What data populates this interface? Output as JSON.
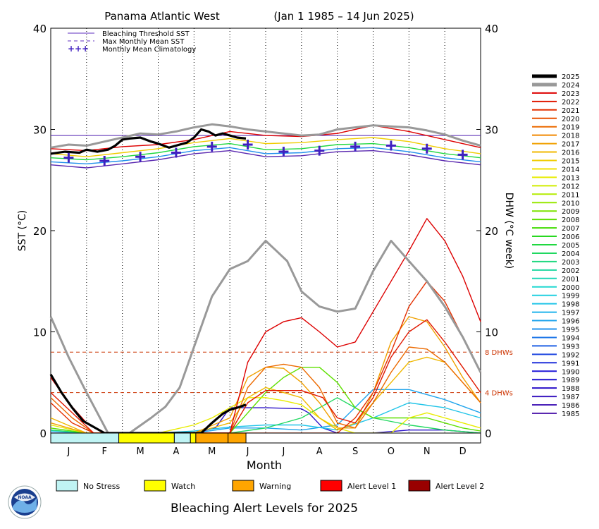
{
  "chart_data": {
    "type": "line",
    "title": "Panama Atlantic West",
    "period": "(Jan 1 1985 – 14 Jun 2025)",
    "xlabel": "Month",
    "ylabel_left": "SST (°C)",
    "ylabel_right": "DHW (°C week)",
    "ylim": [
      0,
      40
    ],
    "yticks": [
      0,
      10,
      20,
      30,
      40
    ],
    "months": [
      "J",
      "F",
      "M",
      "A",
      "M",
      "J",
      "J",
      "A",
      "S",
      "O",
      "N",
      "D"
    ],
    "bleaching_threshold": 29.4,
    "dhw_reference_lines": [
      {
        "value": 8,
        "label": "8 DHWs"
      },
      {
        "value": 4,
        "label": "4 DHWs"
      }
    ],
    "legend_top": [
      {
        "label": "Bleaching Threshold SST",
        "style": "solid",
        "color": "#6030c0"
      },
      {
        "label": "Max Monthly Mean SST",
        "style": "dashed",
        "color": "#6030c0"
      },
      {
        "label": "Monthly Mean Climatology",
        "style": "cross",
        "color": "#4020c0"
      }
    ],
    "climatology": [
      {
        "month": 0,
        "value": 27.2
      },
      {
        "month": 1,
        "value": 26.9
      },
      {
        "month": 2,
        "value": 27.3
      },
      {
        "month": 3,
        "value": 27.7
      },
      {
        "month": 4,
        "value": 28.3
      },
      {
        "month": 5,
        "value": 28.5
      },
      {
        "month": 6,
        "value": 27.8
      },
      {
        "month": 7,
        "value": 27.9
      },
      {
        "month": 8,
        "value": 28.3
      },
      {
        "month": 9,
        "value": 28.4
      },
      {
        "month": 10,
        "value": 28.1
      },
      {
        "month": 11,
        "value": 27.5
      }
    ],
    "years": [
      "2025",
      "2024",
      "2023",
      "2022",
      "2021",
      "2020",
      "2019",
      "2018",
      "2017",
      "2016",
      "2015",
      "2014",
      "2013",
      "2012",
      "2011",
      "2010",
      "2009",
      "2008",
      "2007",
      "2006",
      "2005",
      "2004",
      "2003",
      "2002",
      "2001",
      "2000",
      "1999",
      "1998",
      "1997",
      "1996",
      "1995",
      "1994",
      "1993",
      "1992",
      "1991",
      "1990",
      "1989",
      "1988",
      "1987",
      "1986",
      "1985"
    ],
    "year_colors": [
      "#000000",
      "#999999",
      "#dd0000",
      "#e01800",
      "#e43000",
      "#e85000",
      "#ec6a00",
      "#f08800",
      "#f0a000",
      "#f0b800",
      "#f0cc00",
      "#f0e000",
      "#e8ec00",
      "#d0ec00",
      "#b4ec00",
      "#98e800",
      "#7ce400",
      "#5ee000",
      "#40dc00",
      "#28d820",
      "#20d840",
      "#20d860",
      "#20d880",
      "#20d8a0",
      "#20d8b8",
      "#20d8d0",
      "#20d0e0",
      "#20c4e8",
      "#20b4ec",
      "#20a4ec",
      "#2090ec",
      "#2078e8",
      "#2060e4",
      "#2048e0",
      "#2030dc",
      "#2018d8",
      "#1c10d0",
      "#2a10c8",
      "#3a18c0",
      "#4a20b8",
      "#5a28b0"
    ],
    "sst_series": [
      {
        "name": "2025",
        "x": [
          0,
          0.4,
          0.8,
          1.0,
          1.3,
          1.6,
          1.8,
          2.0,
          2.2,
          2.5,
          2.8,
          3.0,
          3.3,
          3.6,
          3.8,
          4.0,
          4.2,
          4.4,
          4.6,
          4.8,
          5.0,
          5.2,
          5.45
        ],
        "y": [
          27.6,
          27.8,
          27.7,
          28.0,
          27.8,
          28.0,
          28.4,
          29.0,
          29.1,
          29.2,
          28.8,
          28.6,
          28.2,
          28.5,
          28.7,
          29.2,
          30.0,
          29.8,
          29.4,
          29.6,
          29.4,
          29.2,
          29.1
        ]
      },
      {
        "name": "2024",
        "x": [
          0,
          0.5,
          1.0,
          1.5,
          2.0,
          2.5,
          3.0,
          3.5,
          4.0,
          4.5,
          5.0,
          5.5,
          6.0,
          6.5,
          7.0,
          7.5,
          8.0,
          8.5,
          9.0,
          9.5,
          10.0,
          10.5,
          11.0,
          11.5,
          12.0
        ],
        "y": [
          28.2,
          28.5,
          28.4,
          28.8,
          29.2,
          29.6,
          29.5,
          29.8,
          30.2,
          30.5,
          30.3,
          30.0,
          29.8,
          29.6,
          29.4,
          29.5,
          30.0,
          30.2,
          30.4,
          30.3,
          30.2,
          29.9,
          29.5,
          28.9,
          28.4
        ]
      },
      {
        "name": "2023",
        "x": [
          0,
          1,
          2,
          3,
          4,
          5,
          6,
          7,
          8,
          9,
          10,
          11,
          12
        ],
        "y": [
          28.1,
          27.9,
          28.3,
          28.5,
          29.0,
          29.8,
          29.4,
          29.3,
          29.6,
          30.4,
          29.8,
          29.0,
          28.2
        ]
      },
      {
        "name": "2015",
        "x": [
          0,
          1,
          2,
          3,
          4,
          5,
          6,
          7,
          8,
          9,
          10,
          11,
          12
        ],
        "y": [
          27.6,
          27.3,
          27.7,
          28.1,
          28.7,
          29.1,
          28.6,
          28.7,
          29.0,
          29.2,
          28.8,
          28.1,
          27.6
        ]
      },
      {
        "name": "2005",
        "x": [
          0,
          1,
          2,
          3,
          4,
          5,
          6,
          7,
          8,
          9,
          10,
          11,
          12
        ],
        "y": [
          27.2,
          27.0,
          27.3,
          27.7,
          28.3,
          28.6,
          28.0,
          28.1,
          28.5,
          28.6,
          28.2,
          27.6,
          27.2
        ]
      },
      {
        "name": "1995",
        "x": [
          0,
          1,
          2,
          3,
          4,
          5,
          6,
          7,
          8,
          9,
          10,
          11,
          12
        ],
        "y": [
          26.8,
          26.6,
          26.9,
          27.3,
          27.9,
          28.2,
          27.6,
          27.7,
          28.1,
          28.2,
          27.8,
          27.2,
          26.8
        ]
      },
      {
        "name": "1985",
        "x": [
          0,
          1,
          2,
          3,
          4,
          5,
          6,
          7,
          8,
          9,
          10,
          11,
          12
        ],
        "y": [
          26.5,
          26.2,
          26.6,
          27.0,
          27.6,
          27.9,
          27.3,
          27.4,
          27.8,
          27.9,
          27.5,
          26.9,
          26.5
        ]
      }
    ],
    "dhw_series": [
      {
        "name": "2025",
        "x": [
          0,
          0.3,
          0.6,
          0.9,
          1.2,
          1.4,
          1.5,
          4.2,
          4.5,
          4.8,
          5.0,
          5.2,
          5.45
        ],
        "y": [
          5.8,
          4.0,
          2.5,
          1.2,
          0.6,
          0.2,
          0,
          0,
          1.0,
          1.9,
          2.3,
          2.5,
          2.8
        ]
      },
      {
        "name": "2024",
        "x": [
          0,
          0.5,
          1.0,
          1.3,
          1.6,
          2.2,
          2.8,
          3.2,
          3.6,
          4.0,
          4.5,
          5.0,
          5.5,
          6.0,
          6.3,
          6.6,
          7.0,
          7.5,
          8.0,
          8.5,
          9.0,
          9.5,
          10.0,
          10.5,
          11.0,
          11.5,
          12.0
        ],
        "y": [
          11.5,
          7.5,
          4.0,
          2.0,
          0,
          0,
          1.5,
          2.6,
          4.5,
          8.5,
          13.5,
          16.2,
          17.0,
          19.0,
          18.0,
          17.0,
          14.0,
          12.5,
          12.0,
          12.3,
          16.0,
          19.0,
          17.0,
          15.0,
          12.5,
          9.5,
          6.0
        ]
      },
      {
        "name": "2023",
        "x": [
          0,
          0.5,
          1.0,
          1.5,
          5.0,
          5.5,
          6.0,
          6.5,
          7.0,
          7.5,
          8.0,
          8.5,
          9.0,
          9.5,
          10.0,
          10.5,
          11.0,
          11.5,
          12.0
        ],
        "y": [
          5.5,
          3.0,
          1.0,
          0,
          0,
          7.0,
          10.0,
          11.0,
          11.4,
          10.0,
          8.5,
          9.0,
          12.0,
          15.0,
          18.0,
          21.2,
          19.0,
          15.5,
          11.0
        ]
      },
      {
        "name": "2022",
        "x": [
          0,
          0.6,
          1.2,
          5.0,
          5.5,
          6.0,
          7.0,
          7.6,
          8.0,
          8.5,
          9.0,
          9.5,
          10.0,
          10.5,
          11.0,
          11.5,
          12.0
        ],
        "y": [
          4.0,
          2.0,
          0,
          0,
          3.0,
          4.2,
          4.2,
          3.5,
          1.5,
          1.0,
          3.5,
          7.5,
          10.0,
          11.2,
          9.0,
          6.5,
          4.0
        ]
      },
      {
        "name": "2021",
        "x": [
          0,
          0.6,
          1.2,
          5.0,
          5.5,
          6.0,
          6.5,
          7.0,
          7.5,
          8.0,
          8.5,
          9.0,
          9.5,
          10.0,
          10.5,
          11.0,
          11.5,
          12.0
        ],
        "y": [
          3.0,
          1.0,
          0,
          0,
          0,
          0,
          0,
          0,
          0,
          0,
          1.5,
          4.0,
          8.0,
          12.5,
          15.0,
          13.0,
          9.5,
          6.0
        ]
      },
      {
        "name": "2019",
        "x": [
          0,
          0.6,
          1.2,
          5.0,
          5.5,
          6.0,
          6.5,
          7.0,
          7.5,
          8.0,
          8.5,
          9.0,
          9.5,
          10.0,
          10.5,
          11.0,
          11.5,
          12.0
        ],
        "y": [
          3.5,
          1.5,
          0,
          0,
          4.5,
          6.5,
          6.8,
          6.5,
          4.5,
          1.0,
          0.5,
          3.0,
          6.0,
          8.5,
          8.3,
          7.0,
          5.0,
          3.0
        ]
      },
      {
        "name": "2017",
        "x": [
          0,
          1,
          2,
          3,
          4,
          5,
          5.5,
          6.0,
          6.5,
          7.0,
          7.5,
          8.0,
          8.5,
          9.0,
          9.5,
          10.0,
          10.5,
          11.0,
          11.5,
          12.0
        ],
        "y": [
          1.0,
          0,
          0,
          0,
          0,
          1.5,
          5.5,
          6.5,
          6.4,
          5.0,
          3.0,
          0.5,
          0.5,
          4.0,
          9.0,
          11.5,
          11.0,
          8.5,
          5.5,
          3.0
        ]
      },
      {
        "name": "2016",
        "x": [
          0,
          1,
          2,
          3,
          4,
          5,
          5.5,
          6.0,
          6.5,
          7.0,
          7.5,
          8.0,
          8.5,
          9.0,
          9.5,
          10.0,
          10.5,
          11.0,
          11.5,
          12.0
        ],
        "y": [
          1.5,
          0,
          0,
          0,
          0,
          1.0,
          3.5,
          4.5,
          4.0,
          3.5,
          1.5,
          0.3,
          1.0,
          3.0,
          5.0,
          7.0,
          7.5,
          7.0,
          5.0,
          3.0
        ]
      },
      {
        "name": "2013",
        "x": [
          0,
          1,
          2,
          3,
          4,
          4.5,
          5.0,
          5.5,
          6.0,
          6.5,
          7.0,
          7.5,
          8.0,
          8.5,
          9.0,
          9.5,
          10.0,
          10.5,
          11.0,
          11.5,
          12.0
        ],
        "y": [
          0.8,
          0,
          0,
          0,
          0.8,
          1.5,
          2.5,
          3.5,
          3.5,
          3.2,
          2.8,
          1.5,
          0.5,
          0,
          0,
          0,
          1.5,
          2.0,
          1.5,
          1.0,
          0.5
        ]
      },
      {
        "name": "2008",
        "x": [
          0,
          1,
          2,
          3,
          4,
          5,
          5.5,
          6.0,
          6.5,
          7.0,
          7.5,
          8.0,
          8.5,
          9.0,
          9.5,
          10.0,
          10.5,
          11.0,
          11.5,
          12.0
        ],
        "y": [
          0.5,
          0,
          0,
          0,
          0,
          0,
          2.0,
          4.0,
          5.5,
          6.5,
          6.5,
          5.0,
          2.5,
          1.5,
          1.5,
          1.5,
          1.5,
          1.0,
          0.5,
          0.2
        ]
      },
      {
        "name": "2004",
        "x": [
          0,
          1,
          2,
          3,
          4,
          5,
          6,
          7,
          8,
          9,
          10,
          11,
          12
        ],
        "y": [
          0.3,
          0,
          0,
          0,
          0,
          0,
          0.5,
          1.5,
          3.5,
          1.5,
          0.8,
          0.3,
          0
        ]
      },
      {
        "name": "1998",
        "x": [
          0,
          1,
          2,
          3,
          4,
          5,
          6,
          7,
          8,
          9,
          10,
          11,
          12
        ],
        "y": [
          0.2,
          0,
          0,
          0,
          0.2,
          0.6,
          0.8,
          0.8,
          0.3,
          1.5,
          3.0,
          2.5,
          1.5
        ]
      },
      {
        "name": "1996",
        "x": [
          0,
          1,
          2,
          3,
          4,
          5,
          6,
          7,
          8,
          9,
          10,
          11,
          12
        ],
        "y": [
          0,
          0,
          0,
          0,
          0,
          0.5,
          0.5,
          0.3,
          0.8,
          4.3,
          4.3,
          3.3,
          2.0
        ]
      },
      {
        "name": "1988",
        "x": [
          0,
          1,
          2,
          3,
          4,
          4.6,
          5.0,
          6.0,
          7.0,
          7.2,
          7.6,
          8.0,
          9.0,
          10.0,
          11.0,
          12.0
        ],
        "y": [
          0,
          0,
          0,
          0,
          0,
          0.5,
          2.5,
          2.5,
          2.4,
          2.0,
          0.5,
          0,
          0,
          0.3,
          0.3,
          0
        ]
      }
    ],
    "status_bar": [
      {
        "start": 0,
        "end": 1.9,
        "level": "No Stress"
      },
      {
        "start": 1.9,
        "end": 3.45,
        "level": "Watch"
      },
      {
        "start": 3.45,
        "end": 3.9,
        "level": "No Stress"
      },
      {
        "start": 3.9,
        "end": 4.05,
        "level": "Watch"
      },
      {
        "start": 4.05,
        "end": 4.95,
        "level": "Warning"
      },
      {
        "start": 4.95,
        "end": 5.45,
        "level": "Warning"
      }
    ],
    "alert_legend": [
      {
        "label": "No Stress",
        "color": "#c0f4f4"
      },
      {
        "label": "Watch",
        "color": "#ffff00"
      },
      {
        "label": "Warning",
        "color": "#ffa500"
      },
      {
        "label": "Alert Level 1",
        "color": "#ff0000"
      },
      {
        "label": "Alert Level 2",
        "color": "#990000"
      }
    ],
    "footer_title": "Bleaching Alert Levels for 2025",
    "logo_text": "NOAA"
  }
}
